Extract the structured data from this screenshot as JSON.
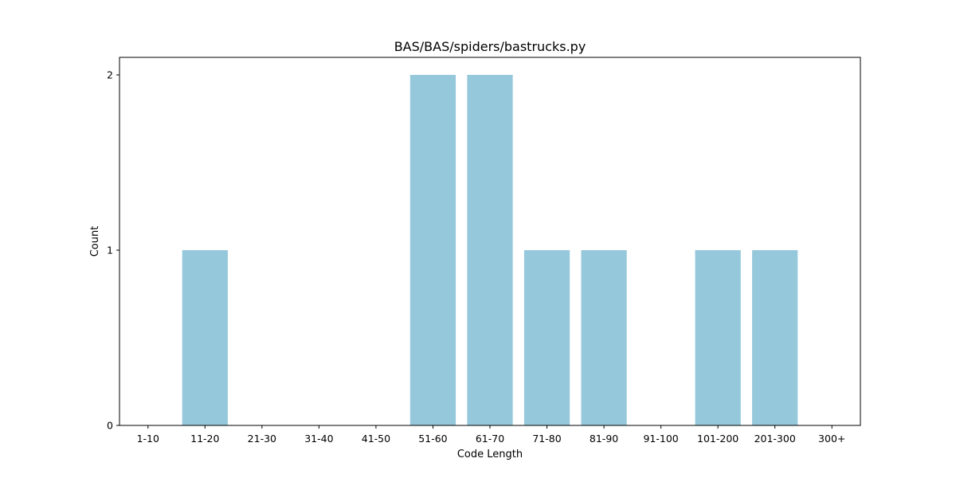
{
  "chart_data": {
    "type": "bar",
    "title": "BAS/BAS/spiders/bastrucks.py",
    "xlabel": "Code Length",
    "ylabel": "Count",
    "categories": [
      "1-10",
      "11-20",
      "21-30",
      "31-40",
      "41-50",
      "51-60",
      "61-70",
      "71-80",
      "81-90",
      "91-100",
      "101-200",
      "201-300",
      "300+"
    ],
    "values": [
      0,
      1,
      0,
      0,
      0,
      2,
      2,
      1,
      1,
      0,
      1,
      1,
      0
    ],
    "ylim": [
      0,
      2.1
    ],
    "yticks": [
      0,
      1,
      2
    ],
    "bar_color": "#96c8dc",
    "grid": false,
    "legend": "none"
  }
}
